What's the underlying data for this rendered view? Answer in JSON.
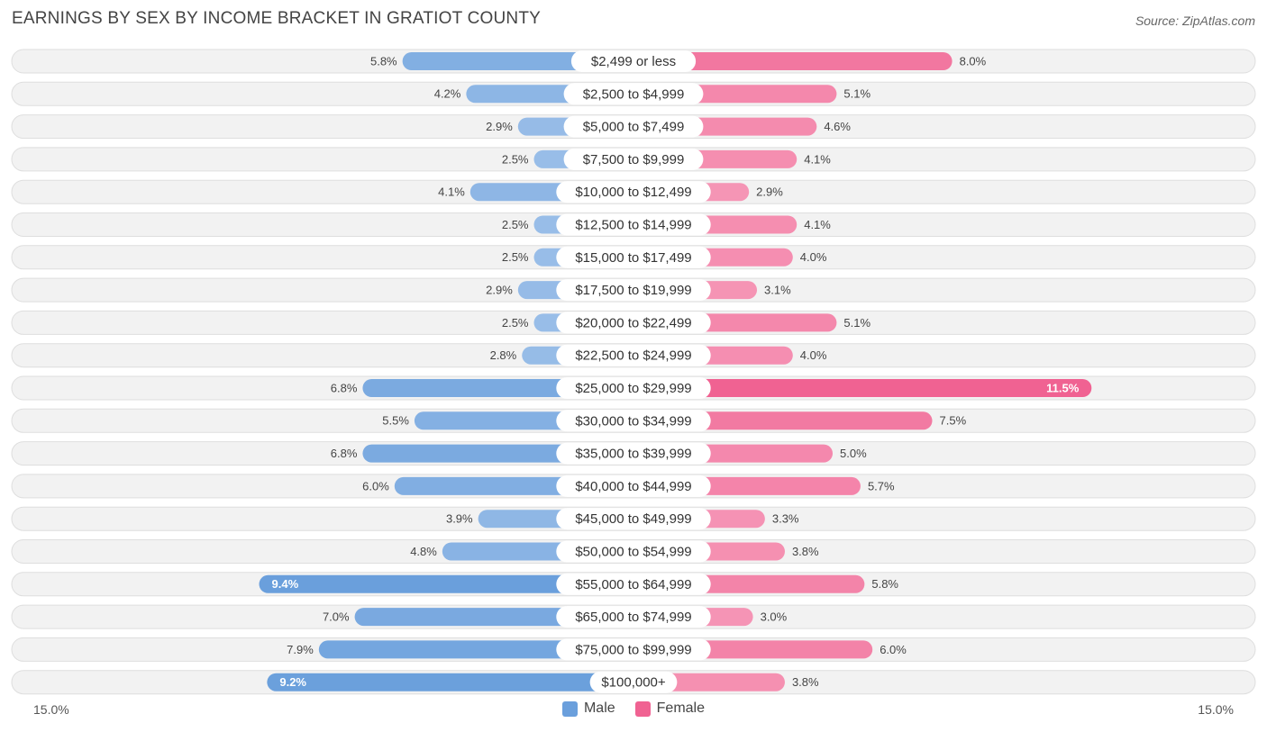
{
  "header": {
    "title": "EARNINGS BY SEX BY INCOME BRACKET IN GRATIOT COUNTY",
    "source": "Source: ZipAtlas.com"
  },
  "colors": {
    "male": "#6a9fdc",
    "male_light": "#a9c8ec",
    "female": "#f06292",
    "female_light": "#f7a6c1"
  },
  "chart_data": {
    "type": "bar",
    "orientation": "horizontal-diverging",
    "title": "EARNINGS BY SEX BY INCOME BRACKET IN GRATIOT COUNTY",
    "xlim": [
      -15.0,
      15.0
    ],
    "axis_left_label": "15.0%",
    "axis_right_label": "15.0%",
    "legend": [
      "Male",
      "Female"
    ],
    "categories": [
      "$2,499 or less",
      "$2,500 to $4,999",
      "$5,000 to $7,499",
      "$7,500 to $9,999",
      "$10,000 to $12,499",
      "$12,500 to $14,999",
      "$15,000 to $17,499",
      "$17,500 to $19,999",
      "$20,000 to $22,499",
      "$22,500 to $24,999",
      "$25,000 to $29,999",
      "$30,000 to $34,999",
      "$35,000 to $39,999",
      "$40,000 to $44,999",
      "$45,000 to $49,999",
      "$50,000 to $54,999",
      "$55,000 to $64,999",
      "$65,000 to $74,999",
      "$75,000 to $99,999",
      "$100,000+"
    ],
    "series": [
      {
        "name": "Male",
        "values": [
          5.8,
          4.2,
          2.9,
          2.5,
          4.1,
          2.5,
          2.5,
          2.9,
          2.5,
          2.8,
          6.8,
          5.5,
          6.8,
          6.0,
          3.9,
          4.8,
          9.4,
          7.0,
          7.9,
          9.2
        ],
        "labels": [
          "5.8%",
          "4.2%",
          "2.9%",
          "2.5%",
          "4.1%",
          "2.5%",
          "2.5%",
          "2.9%",
          "2.5%",
          "2.8%",
          "6.8%",
          "5.5%",
          "6.8%",
          "6.0%",
          "3.9%",
          "4.8%",
          "9.4%",
          "7.0%",
          "7.9%",
          "9.2%"
        ]
      },
      {
        "name": "Female",
        "values": [
          8.0,
          5.1,
          4.6,
          4.1,
          2.9,
          4.1,
          4.0,
          3.1,
          5.1,
          4.0,
          11.5,
          7.5,
          5.0,
          5.7,
          3.3,
          3.8,
          5.8,
          3.0,
          6.0,
          3.8
        ],
        "labels": [
          "8.0%",
          "5.1%",
          "4.6%",
          "4.1%",
          "2.9%",
          "4.1%",
          "4.0%",
          "3.1%",
          "5.1%",
          "4.0%",
          "11.5%",
          "7.5%",
          "5.0%",
          "5.7%",
          "3.3%",
          "3.8%",
          "5.8%",
          "3.0%",
          "6.0%",
          "3.8%"
        ]
      }
    ]
  }
}
